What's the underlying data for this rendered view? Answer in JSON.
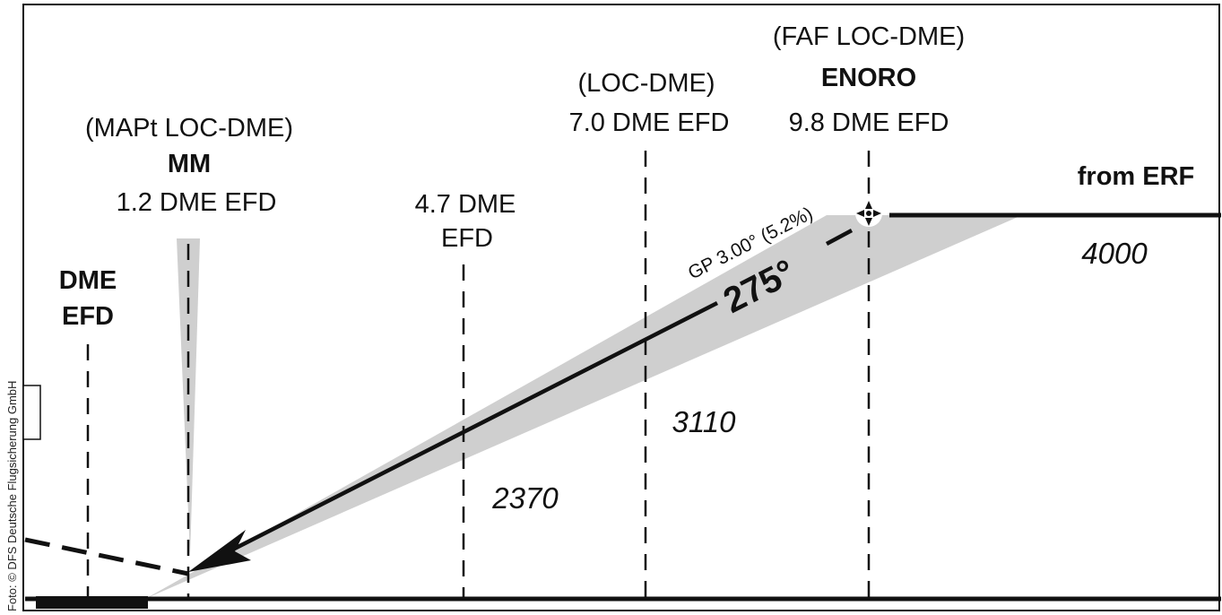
{
  "credit": "Foto: © DFS Deutsche Flugsicherung GmbH",
  "fixes": {
    "dme": {
      "line1": "DME",
      "line2": "EFD"
    },
    "mapt": {
      "line1": "(MAPt LOC-DME)",
      "line2": "MM",
      "line3": "1.2 DME EFD"
    },
    "dme47": {
      "line1": "4.7 DME",
      "line2": "EFD"
    },
    "locdme": {
      "line1": "(LOC-DME)",
      "line2": "7.0 DME EFD"
    },
    "faf": {
      "line1": "(FAF LOC-DME)",
      "line2": "ENORO",
      "line3": "9.8 DME EFD"
    }
  },
  "glidepath": {
    "label": "GP 3.00° (5.2%)",
    "course": "275°"
  },
  "from_label": "from ERF",
  "altitudes": {
    "a4000": "4000",
    "a3110": "3110",
    "a2370": "2370"
  },
  "colors": {
    "ink": "#111111",
    "protection_area": "#cfcfcf"
  }
}
